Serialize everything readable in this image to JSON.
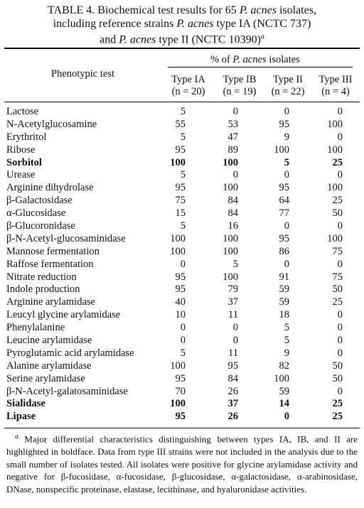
{
  "title": {
    "line1_pre": "TABLE 4. Biochemical test results for 65 ",
    "line1_species": "P. acnes",
    "line1_post": " isolates,",
    "line2_pre": "including reference strains ",
    "line2_species": "P. acnes",
    "line2_post": " type IA (NCTC 737)",
    "line3_pre": "and ",
    "line3_species": "P. acnes",
    "line3_post": " type II (NCTC 10390)",
    "line3_mark": "a"
  },
  "header": {
    "phenotypic_test": "Phenotypic test",
    "percent_pre": "% of ",
    "percent_species": "P. acnes",
    "percent_post": " isolates",
    "columns": [
      {
        "type": "Type IA",
        "n": "(n = 20)"
      },
      {
        "type": "Type IB",
        "n": "(n = 19)"
      },
      {
        "type": "Type II",
        "n": "(n = 22)"
      },
      {
        "type": "Type III",
        "n": "(n = 4)"
      }
    ]
  },
  "rows": [
    {
      "test": "Lactose",
      "values": [
        "5",
        "0",
        "0",
        "0"
      ],
      "bold": false
    },
    {
      "test": "N-Acetylglucosamine",
      "values": [
        "55",
        "53",
        "95",
        "100"
      ],
      "bold": false
    },
    {
      "test": "Erythritol",
      "values": [
        "5",
        "47",
        "9",
        "0"
      ],
      "bold": false
    },
    {
      "test": "Ribose",
      "values": [
        "95",
        "89",
        "100",
        "100"
      ],
      "bold": false
    },
    {
      "test": "Sorbitol",
      "values": [
        "100",
        "100",
        "5",
        "25"
      ],
      "bold": true
    },
    {
      "test": "Urease",
      "values": [
        "5",
        "0",
        "0",
        "0"
      ],
      "bold": false
    },
    {
      "test": "Arginine dihydrolase",
      "values": [
        "95",
        "100",
        "95",
        "100"
      ],
      "bold": false
    },
    {
      "test": "β-Galactosidase",
      "values": [
        "75",
        "84",
        "64",
        "25"
      ],
      "bold": false
    },
    {
      "test": "α-Glucosidase",
      "values": [
        "15",
        "84",
        "77",
        "50"
      ],
      "bold": false
    },
    {
      "test": "β-Glucoronidase",
      "values": [
        "5",
        "16",
        "0",
        "0"
      ],
      "bold": false
    },
    {
      "test": "β-N-Acetyl-glucosaminidase",
      "values": [
        "100",
        "100",
        "95",
        "100"
      ],
      "bold": false
    },
    {
      "test": "Mannose fermentation",
      "values": [
        "100",
        "100",
        "86",
        "75"
      ],
      "bold": false
    },
    {
      "test": "Raffose fermentation",
      "values": [
        "0",
        "5",
        "0",
        "0"
      ],
      "bold": false
    },
    {
      "test": "Nitrate reduction",
      "values": [
        "95",
        "100",
        "91",
        "75"
      ],
      "bold": false
    },
    {
      "test": "Indole production",
      "values": [
        "95",
        "79",
        "59",
        "50"
      ],
      "bold": false
    },
    {
      "test": "Arginine arylamidase",
      "values": [
        "40",
        "37",
        "59",
        "25"
      ],
      "bold": false
    },
    {
      "test": "Leucyl glycine arylamidase",
      "values": [
        "10",
        "11",
        "18",
        "0"
      ],
      "bold": false
    },
    {
      "test": "Phenylalanine",
      "values": [
        "0",
        "0",
        "5",
        "0"
      ],
      "bold": false
    },
    {
      "test": "Leucine arylamidase",
      "values": [
        "0",
        "0",
        "5",
        "0"
      ],
      "bold": false
    },
    {
      "test": "Pyroglutamic acid arylamidase",
      "values": [
        "5",
        "11",
        "9",
        "0"
      ],
      "bold": false
    },
    {
      "test": "Alanine arylamidase",
      "values": [
        "100",
        "95",
        "82",
        "50"
      ],
      "bold": false
    },
    {
      "test": "Serine arylamidase",
      "values": [
        "95",
        "84",
        "100",
        "50"
      ],
      "bold": false
    },
    {
      "test": "β-N-Acetyl-galatosaminidase",
      "values": [
        "70",
        "26",
        "59",
        "0"
      ],
      "bold": false
    },
    {
      "test": "Sialidase",
      "values": [
        "100",
        "37",
        "14",
        "25"
      ],
      "bold": true
    },
    {
      "test": "Lipase",
      "values": [
        "95",
        "26",
        "0",
        "25"
      ],
      "bold": true
    }
  ],
  "footnote": {
    "mark": "a",
    "text": "Major differential characteristics distinguishing between types IA, IB, and II are highlighted in boldface. Data from type III strains were not included in the analysis due to the small number of isolates tested. All isolates were positive for glycine arylamidase activity and negative for β-fucosidase, α-fucosidase, β-glucosidase, α-galactosidase, α-arabinosidase, DNase, nonspecific proteinase, elastase, lecithinase, and hyaluronidase activities."
  }
}
